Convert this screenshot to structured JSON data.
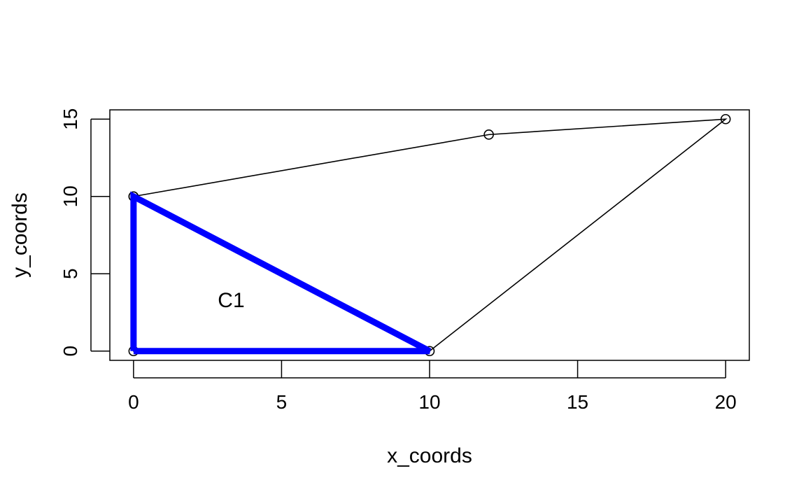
{
  "chart_data": {
    "type": "line",
    "title": "",
    "xlabel": "x_coords",
    "ylabel": "y_coords",
    "xlim": [
      -0.8,
      20.8
    ],
    "ylim": [
      -0.6,
      15.6
    ],
    "x_ticks": [
      0,
      5,
      10,
      15,
      20
    ],
    "y_ticks": [
      0,
      5,
      10,
      15
    ],
    "grid": false,
    "legend": "none",
    "series": [
      {
        "kind": "line-with-points",
        "color": "#000000",
        "points": [
          [
            0,
            10
          ],
          [
            12,
            14
          ],
          [
            20,
            15
          ],
          [
            10,
            0
          ],
          [
            0,
            0
          ],
          [
            0,
            10
          ]
        ]
      },
      {
        "kind": "polygon-outline",
        "color": "#0000ff",
        "points": [
          [
            0,
            0
          ],
          [
            10,
            0
          ],
          [
            0,
            10
          ],
          [
            0,
            0
          ]
        ]
      }
    ],
    "annotations": [
      {
        "text": "C1",
        "x": 3.3,
        "y": 3.3
      }
    ]
  }
}
